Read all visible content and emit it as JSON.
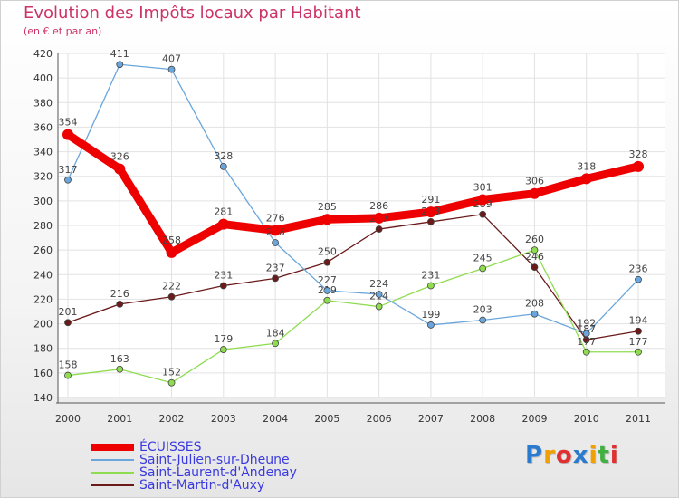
{
  "chart_data": {
    "type": "line",
    "title": "Evolution des Impôts locaux par Habitant",
    "subtitle": "(en € et par an)",
    "xlabel": "",
    "ylabel": "",
    "categories": [
      "2000",
      "2001",
      "2002",
      "2003",
      "2004",
      "2005",
      "2006",
      "2007",
      "2008",
      "2009",
      "2010",
      "2011"
    ],
    "ylim": [
      140,
      420
    ],
    "yticks": [
      140,
      160,
      180,
      200,
      220,
      240,
      260,
      280,
      300,
      320,
      340,
      360,
      380,
      400,
      420
    ],
    "grid": true,
    "legend": "bottom-left",
    "series": [
      {
        "name": "Saint-Martin-d'Auxy",
        "color": "#6b1a1a",
        "values": [
          201,
          216,
          222,
          231,
          237,
          250,
          277,
          283,
          289,
          246,
          187,
          194
        ]
      },
      {
        "name": "Saint-Laurent-d'Andenay",
        "color": "#8fdc50",
        "values": [
          158,
          163,
          152,
          179,
          184,
          219,
          214,
          231,
          245,
          260,
          177,
          177
        ]
      },
      {
        "name": "Saint-Julien-sur-Dheune",
        "color": "#6aa6dc",
        "values": [
          317,
          411,
          407,
          328,
          266,
          227,
          224,
          199,
          203,
          208,
          192,
          236
        ]
      },
      {
        "name": "ÉCUISSES",
        "color": "#ee0000",
        "values": [
          354,
          326,
          258,
          281,
          276,
          285,
          286,
          291,
          301,
          306,
          318,
          328
        ]
      }
    ],
    "legend_order": [
      "ÉCUISSES",
      "Saint-Julien-sur-Dheune",
      "Saint-Laurent-d'Andenay",
      "Saint-Martin-d'Auxy"
    ]
  },
  "logo": {
    "text": "Proxiti",
    "letters": [
      "P",
      "r",
      "o",
      "x",
      "i",
      "t",
      "i"
    ],
    "colors": [
      "#2a7bd0",
      "#f0a000",
      "#e03030",
      "#2a7bd0",
      "#f0a000",
      "#40b040",
      "#e03030"
    ]
  }
}
